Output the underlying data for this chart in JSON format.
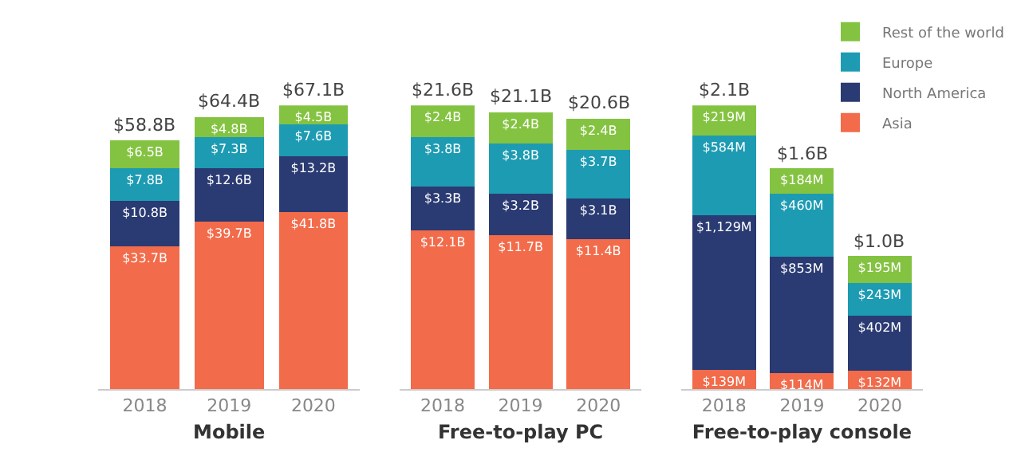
{
  "chart_data": [
    {
      "type": "bar",
      "stacked": true,
      "xlabel": "Mobile",
      "categories": [
        "2018",
        "2019",
        "2020"
      ],
      "tick_labels": "x",
      "legend": false,
      "series": [
        {
          "color": "#f26b4a",
          "values": [
            33.7,
            39.7,
            41.8
          ],
          "value_labels": [
            "$33.7B",
            "$39.7B",
            "$41.8B"
          ]
        },
        {
          "color": "#2a3a72",
          "values": [
            10.8,
            12.6,
            13.2
          ],
          "value_labels": [
            "$10.8B",
            "$12.6B",
            "$13.2B"
          ]
        },
        {
          "color": "#1d9bb2",
          "values": [
            7.8,
            7.3,
            7.6
          ],
          "value_labels": [
            "$7.8B",
            "$7.3B",
            "$7.6B"
          ]
        },
        {
          "color": "#84c341",
          "values": [
            6.5,
            4.8,
            4.5
          ],
          "value_labels": [
            "$6.5B",
            "$4.8B",
            "$4.5B"
          ]
        }
      ],
      "totals": [
        "$58.8B",
        "$64.4B",
        "$67.1B"
      ]
    },
    {
      "type": "bar",
      "stacked": true,
      "xlabel": "Free-to-play PC",
      "categories": [
        "2018",
        "2019",
        "2020"
      ],
      "tick_labels": "x",
      "legend": false,
      "series": [
        {
          "color": "#f26b4a",
          "values": [
            12.1,
            11.7,
            11.4
          ],
          "value_labels": [
            "$12.1B",
            "$11.7B",
            "$11.4B"
          ]
        },
        {
          "color": "#2a3a72",
          "values": [
            3.3,
            3.2,
            3.1
          ],
          "value_labels": [
            "$3.3B",
            "$3.2B",
            "$3.1B"
          ]
        },
        {
          "color": "#1d9bb2",
          "values": [
            3.8,
            3.8,
            3.7
          ],
          "value_labels": [
            "$3.8B",
            "$3.8B",
            "$3.7B"
          ]
        },
        {
          "color": "#84c341",
          "values": [
            2.4,
            2.4,
            2.4
          ],
          "value_labels": [
            "$2.4B",
            "$2.4B",
            "$2.4B"
          ]
        }
      ],
      "totals": [
        "$21.6B",
        "$21.1B",
        "$20.6B"
      ]
    },
    {
      "type": "bar",
      "stacked": true,
      "xlabel": "Free-to-play console",
      "categories": [
        "2018",
        "2019",
        "2020"
      ],
      "tick_labels": "x",
      "legend": "top right",
      "series": [
        {
          "name": "Asia",
          "color": "#f26b4a",
          "values": [
            139,
            114,
            132
          ],
          "value_labels": [
            "$139M",
            "$114M",
            "$132M"
          ]
        },
        {
          "name": "North America",
          "color": "#2a3a72",
          "values": [
            1129,
            853,
            402
          ],
          "value_labels": [
            "$1,129M",
            "$853M",
            "$402M"
          ]
        },
        {
          "name": "Europe",
          "color": "#1d9bb2",
          "values": [
            584,
            460,
            243
          ],
          "value_labels": [
            "$584M",
            "$460M",
            "$243M"
          ]
        },
        {
          "name": "Rest of the world",
          "color": "#84c341",
          "values": [
            219,
            184,
            195
          ],
          "value_labels": [
            "$219M",
            "$184M",
            "$195M"
          ]
        }
      ],
      "totals": [
        "$2.1B",
        "$1.6B",
        "$1.0B"
      ]
    }
  ]
}
